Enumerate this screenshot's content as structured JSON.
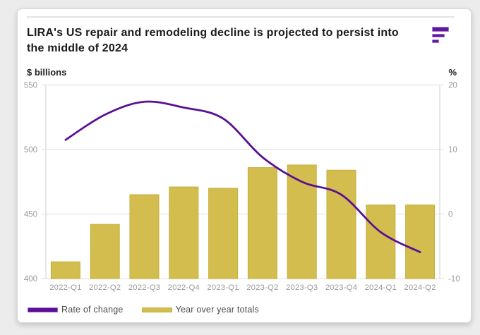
{
  "header": {
    "title": "LIRA's US repair and remodeling decline is projected to persist into the middle of 2024"
  },
  "axes": {
    "left_unit": "$ billions",
    "right_unit": "%"
  },
  "legend": [
    {
      "label": "Rate of change",
      "color": "#5a1094",
      "border": "#9a63c9"
    },
    {
      "label": "Year over year totals",
      "color": "#d3bd4e",
      "border": "#c4ae3a"
    }
  ],
  "chart_data": {
    "type": "combo",
    "categories": [
      "2022-Q1",
      "2022-Q2",
      "2022-Q3",
      "2022-Q4",
      "2023-Q1",
      "2023-Q2",
      "2023-Q3",
      "2023-Q4",
      "2024-Q1",
      "2024-Q2"
    ],
    "series": [
      {
        "name": "Year over year totals",
        "type": "bar",
        "axis": "left",
        "color": "#d3bd4e",
        "values": [
          413,
          442,
          465,
          471,
          470,
          486,
          488,
          484,
          457,
          457
        ]
      },
      {
        "name": "Rate of change",
        "type": "line",
        "axis": "right",
        "color": "#5a1094",
        "values": [
          11.5,
          15.4,
          17.4,
          16.5,
          14.8,
          8.8,
          5.0,
          3.0,
          -2.8,
          -5.9
        ]
      }
    ],
    "left_axis": {
      "label": "$ billions",
      "range": [
        400,
        550
      ],
      "ticks": [
        550,
        500,
        450,
        400
      ]
    },
    "right_axis": {
      "label": "%",
      "range": [
        -10,
        20
      ],
      "ticks": [
        20,
        10,
        0,
        -10
      ]
    },
    "grid": true,
    "legend_position": "bottom"
  },
  "colors": {
    "accent_purple": "#5a1094",
    "logo_purple": "#61179c",
    "logo_border": "#a678d2",
    "bar_gold": "#d3bd4e",
    "bar_border": "#c4ae3a",
    "grid_line": "#e9e9e9",
    "axis_line": "#dddddd",
    "tick_text": "#9b9b9b",
    "title_text": "#1a1a1a",
    "legend_text": "#4a4a4a"
  }
}
